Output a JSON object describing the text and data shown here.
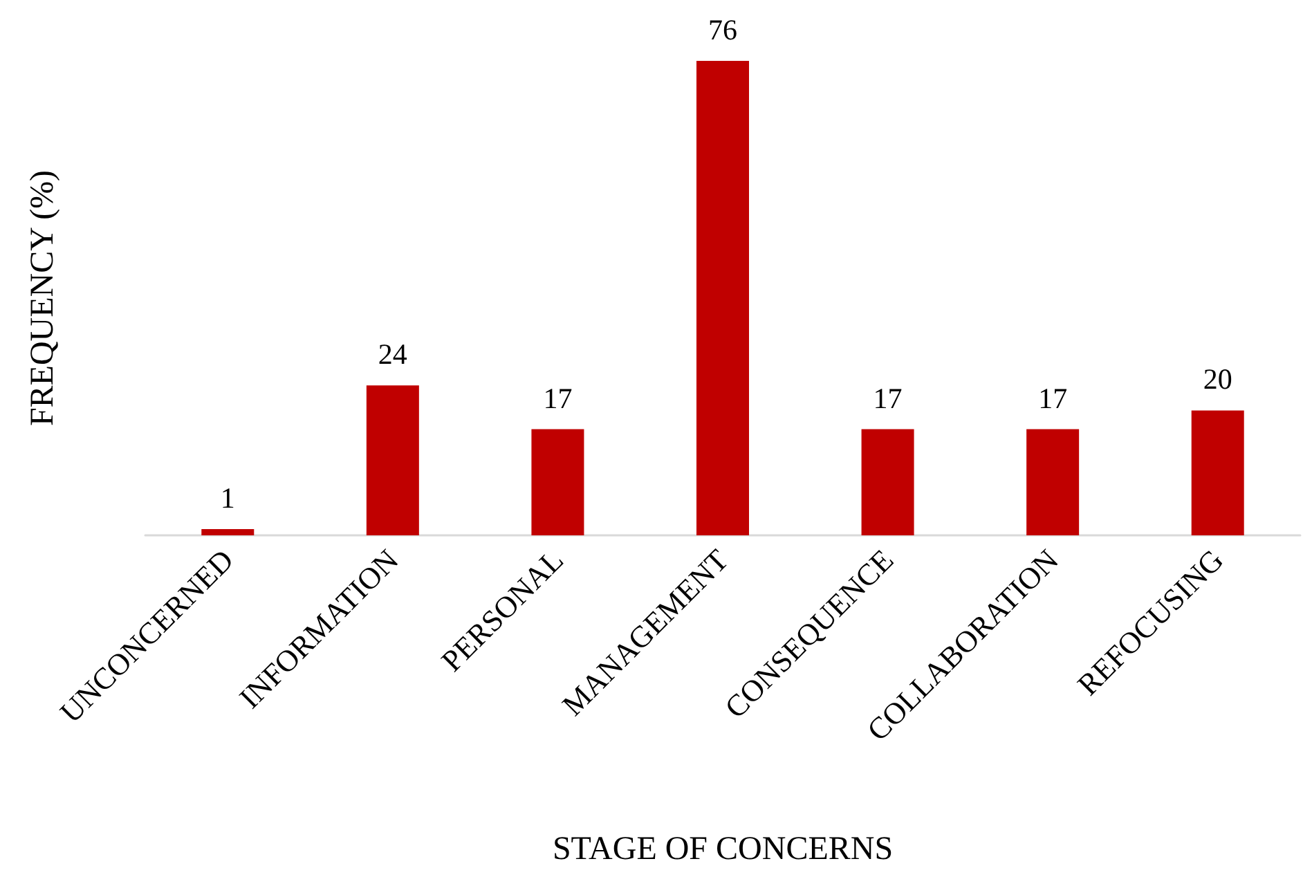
{
  "chart_data": {
    "type": "bar",
    "xlabel": "STAGE OF CONCERNS",
    "ylabel": "FREQUENCY (%)",
    "categories": [
      "UNCONCERNED",
      "INFORMATION",
      "PERSONAL",
      "MANAGEMENT",
      "CONSEQUENCE",
      "COLLABORATION",
      "REFOCUSING"
    ],
    "values": [
      1,
      24,
      17,
      76,
      17,
      17,
      20
    ],
    "color": "#c00000",
    "data_labels": true
  }
}
